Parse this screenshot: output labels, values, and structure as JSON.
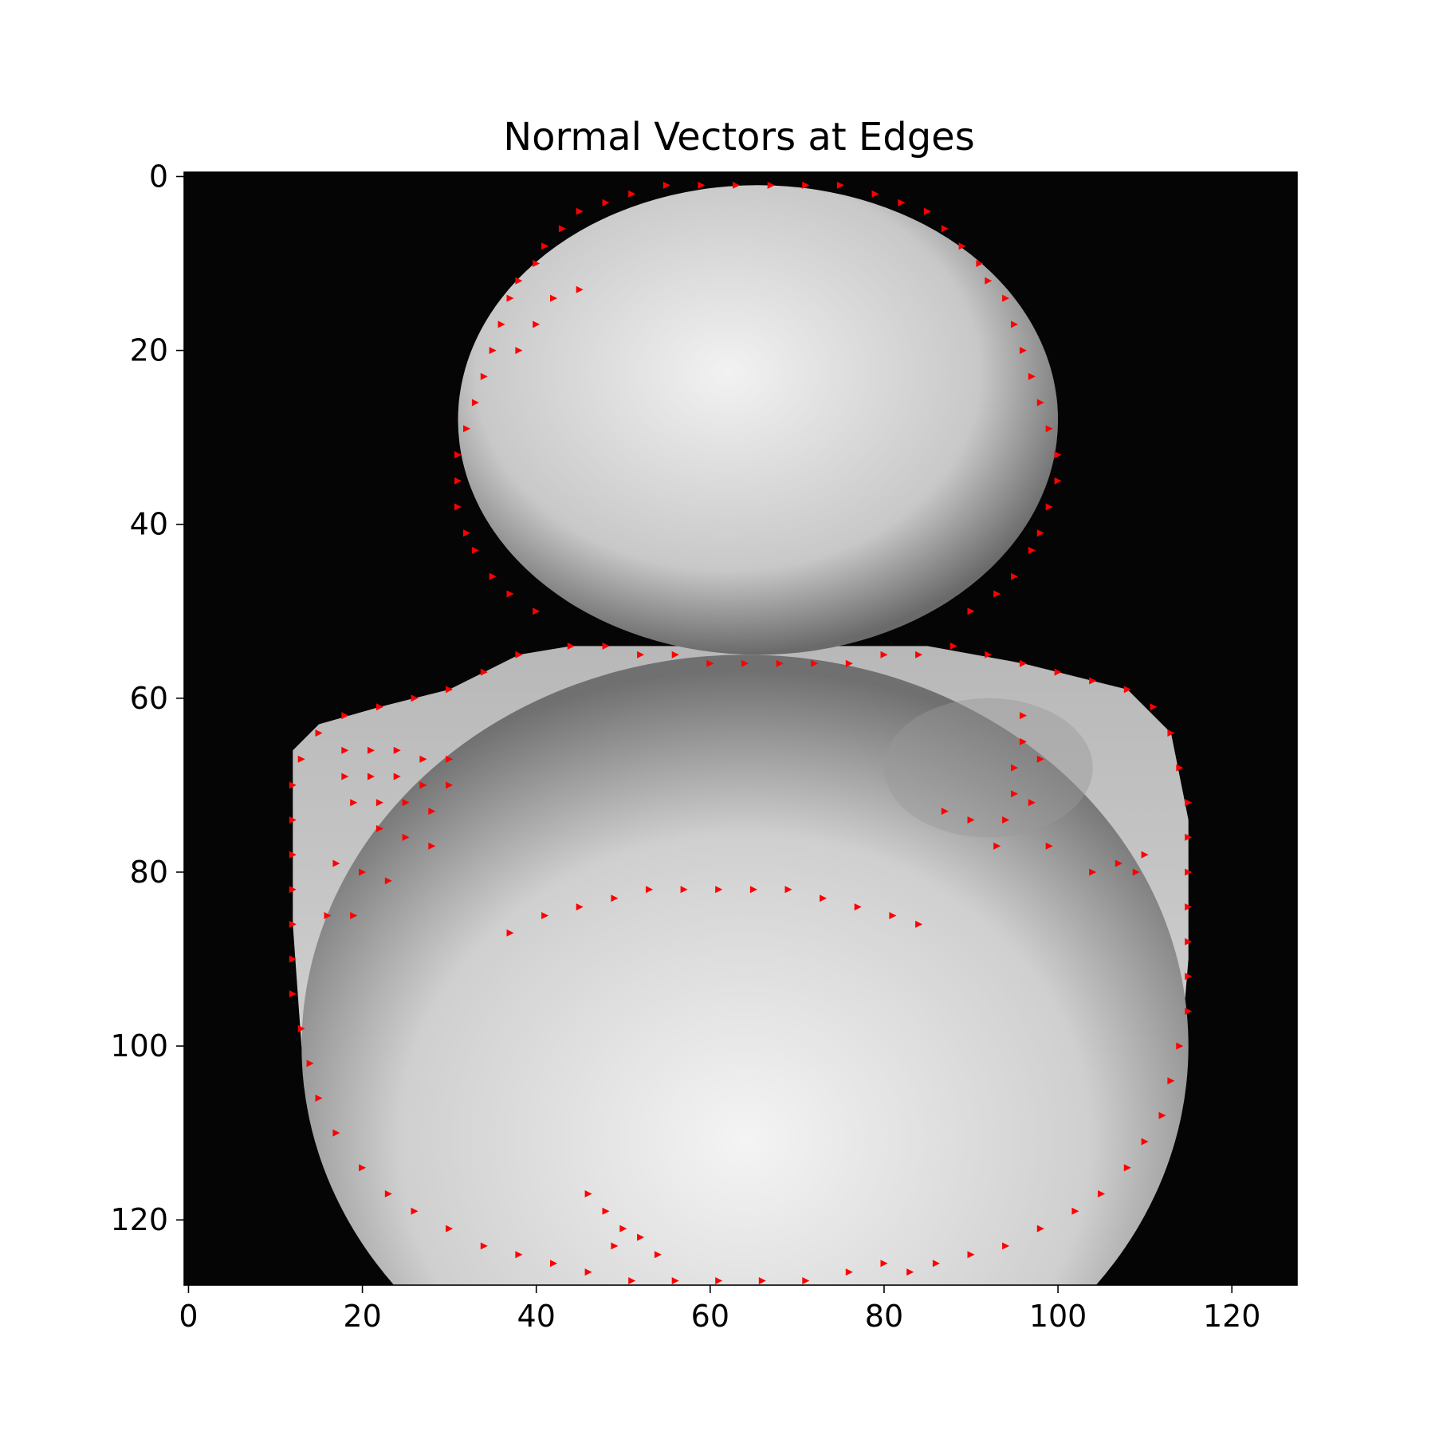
{
  "chart_data": {
    "type": "scatter",
    "title": "Normal Vectors at Edges",
    "xlabel": "",
    "ylabel": "",
    "xlim": [
      -0.5,
      127.5
    ],
    "ylim": [
      127.5,
      -0.5
    ],
    "x_ticks": [
      "0",
      "20",
      "40",
      "60",
      "80",
      "100",
      "120"
    ],
    "y_ticks": [
      "0",
      "20",
      "40",
      "60",
      "80",
      "100",
      "120"
    ],
    "grid": false,
    "background_image": "grayscale-rubber-duck-image",
    "marker_color": "#ff0000",
    "series": [
      {
        "points": [
          [
            55,
            1
          ],
          [
            59,
            1
          ],
          [
            63,
            1
          ],
          [
            67,
            1
          ],
          [
            71,
            1
          ],
          [
            75,
            1
          ],
          [
            51,
            2
          ],
          [
            79,
            2
          ],
          [
            48,
            3
          ],
          [
            82,
            3
          ],
          [
            45,
            4
          ],
          [
            85,
            4
          ],
          [
            43,
            6
          ],
          [
            87,
            6
          ],
          [
            41,
            8
          ],
          [
            89,
            8
          ],
          [
            40,
            10
          ],
          [
            91,
            10
          ],
          [
            38,
            12
          ],
          [
            92,
            12
          ],
          [
            37,
            14
          ],
          [
            94,
            14
          ],
          [
            36,
            17
          ],
          [
            95,
            17
          ],
          [
            35,
            20
          ],
          [
            96,
            20
          ],
          [
            34,
            23
          ],
          [
            97,
            23
          ],
          [
            33,
            26
          ],
          [
            98,
            26
          ],
          [
            32,
            29
          ],
          [
            99,
            29
          ],
          [
            31,
            32
          ],
          [
            100,
            32
          ],
          [
            31,
            35
          ],
          [
            100,
            35
          ],
          [
            31,
            38
          ],
          [
            99,
            38
          ],
          [
            32,
            41
          ],
          [
            98,
            41
          ],
          [
            33,
            43
          ],
          [
            97,
            43
          ],
          [
            35,
            46
          ],
          [
            95,
            46
          ],
          [
            37,
            48
          ],
          [
            93,
            48
          ],
          [
            40,
            50
          ],
          [
            90,
            50
          ],
          [
            44,
            54
          ],
          [
            48,
            54
          ],
          [
            52,
            55
          ],
          [
            56,
            55
          ],
          [
            60,
            56
          ],
          [
            64,
            56
          ],
          [
            68,
            56
          ],
          [
            72,
            56
          ],
          [
            76,
            56
          ],
          [
            80,
            55
          ],
          [
            84,
            55
          ],
          [
            38,
            55
          ],
          [
            34,
            57
          ],
          [
            30,
            59
          ],
          [
            26,
            60
          ],
          [
            22,
            61
          ],
          [
            18,
            62
          ],
          [
            15,
            64
          ],
          [
            13,
            67
          ],
          [
            12,
            70
          ],
          [
            12,
            74
          ],
          [
            12,
            78
          ],
          [
            12,
            82
          ],
          [
            12,
            86
          ],
          [
            88,
            54
          ],
          [
            92,
            55
          ],
          [
            96,
            56
          ],
          [
            100,
            57
          ],
          [
            104,
            58
          ],
          [
            108,
            59
          ],
          [
            111,
            61
          ],
          [
            113,
            64
          ],
          [
            114,
            68
          ],
          [
            115,
            72
          ],
          [
            115,
            76
          ],
          [
            115,
            80
          ],
          [
            115,
            84
          ],
          [
            12,
            90
          ],
          [
            12,
            94
          ],
          [
            13,
            98
          ],
          [
            14,
            102
          ],
          [
            15,
            106
          ],
          [
            17,
            110
          ],
          [
            20,
            114
          ],
          [
            23,
            117
          ],
          [
            26,
            119
          ],
          [
            30,
            121
          ],
          [
            34,
            123
          ],
          [
            38,
            124
          ],
          [
            42,
            125
          ],
          [
            46,
            126
          ],
          [
            51,
            127
          ],
          [
            56,
            127
          ],
          [
            61,
            127
          ],
          [
            66,
            127
          ],
          [
            71,
            127
          ],
          [
            76,
            126
          ],
          [
            80,
            125
          ],
          [
            115,
            88
          ],
          [
            115,
            92
          ],
          [
            115,
            96
          ],
          [
            114,
            100
          ],
          [
            113,
            104
          ],
          [
            112,
            108
          ],
          [
            110,
            111
          ],
          [
            108,
            114
          ],
          [
            105,
            117
          ],
          [
            102,
            119
          ],
          [
            98,
            121
          ],
          [
            94,
            123
          ],
          [
            90,
            124
          ],
          [
            86,
            125
          ],
          [
            83,
            126
          ],
          [
            18,
            66
          ],
          [
            21,
            66
          ],
          [
            24,
            66
          ],
          [
            27,
            67
          ],
          [
            30,
            67
          ],
          [
            18,
            69
          ],
          [
            21,
            69
          ],
          [
            24,
            69
          ],
          [
            27,
            70
          ],
          [
            30,
            70
          ],
          [
            19,
            72
          ],
          [
            22,
            72
          ],
          [
            25,
            72
          ],
          [
            28,
            73
          ],
          [
            22,
            75
          ],
          [
            25,
            76
          ],
          [
            28,
            77
          ],
          [
            17,
            79
          ],
          [
            20,
            80
          ],
          [
            23,
            81
          ],
          [
            16,
            85
          ],
          [
            19,
            85
          ],
          [
            96,
            62
          ],
          [
            96,
            65
          ],
          [
            95,
            68
          ],
          [
            95,
            71
          ],
          [
            94,
            74
          ],
          [
            93,
            77
          ],
          [
            98,
            67
          ],
          [
            97,
            72
          ],
          [
            99,
            77
          ],
          [
            90,
            74
          ],
          [
            87,
            73
          ],
          [
            104,
            80
          ],
          [
            107,
            79
          ],
          [
            110,
            78
          ],
          [
            109,
            80
          ],
          [
            37,
            87
          ],
          [
            41,
            85
          ],
          [
            45,
            84
          ],
          [
            49,
            83
          ],
          [
            53,
            82
          ],
          [
            57,
            82
          ],
          [
            61,
            82
          ],
          [
            65,
            82
          ],
          [
            69,
            82
          ],
          [
            73,
            83
          ],
          [
            77,
            84
          ],
          [
            81,
            85
          ],
          [
            84,
            86
          ],
          [
            38,
            20
          ],
          [
            40,
            17
          ],
          [
            42,
            14
          ],
          [
            45,
            13
          ],
          [
            46,
            117
          ],
          [
            48,
            119
          ],
          [
            50,
            121
          ],
          [
            52,
            122
          ],
          [
            54,
            124
          ],
          [
            49,
            123
          ]
        ]
      }
    ]
  }
}
